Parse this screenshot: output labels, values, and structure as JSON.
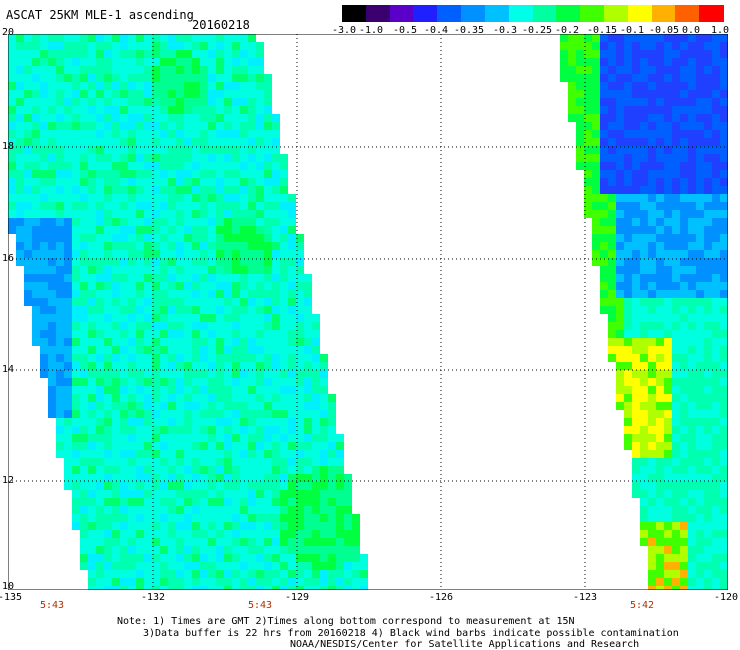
{
  "header": {
    "title": "ASCAT 25KM MLE-1 ascending",
    "date": "20160218"
  },
  "colorbar": {
    "labels": [
      "-3.0",
      "-1.0",
      "-0.5",
      "-0.4",
      "-0.35",
      "-0.3",
      "-0.25",
      "-0.2",
      "-0.15",
      "-0.1",
      "-0.05",
      "0.0",
      "1.0"
    ],
    "colors": [
      "#000000",
      "#3a0070",
      "#5a00c8",
      "#2020ff",
      "#0060ff",
      "#0090ff",
      "#00c0ff",
      "#00ffe8",
      "#00ffa0",
      "#00ff40",
      "#40ff00",
      "#b0ff00",
      "#ffff00",
      "#ffb000",
      "#ff6000",
      "#ff0000"
    ]
  },
  "map": {
    "x_ticks": [
      "-135",
      "-132",
      "-129",
      "-126",
      "-123",
      "-120"
    ],
    "y_ticks": [
      "20",
      "18",
      "16",
      "14",
      "12",
      "10"
    ],
    "lon_range": [
      -135,
      -120
    ],
    "lat_range": [
      10,
      20
    ],
    "swath_times": [
      "5:43",
      "5:43",
      "5:42"
    ]
  },
  "notes": {
    "line1": "Note: 1) Times are GMT 2)Times along bottom correspond to measurement at 15N",
    "line2": "3)Data buffer is 22 hrs from 20160218 4) Black wind barbs indicate possible contamination",
    "line3": "NOAA/NESDIS/Center for Satellite Applications and Research"
  }
}
